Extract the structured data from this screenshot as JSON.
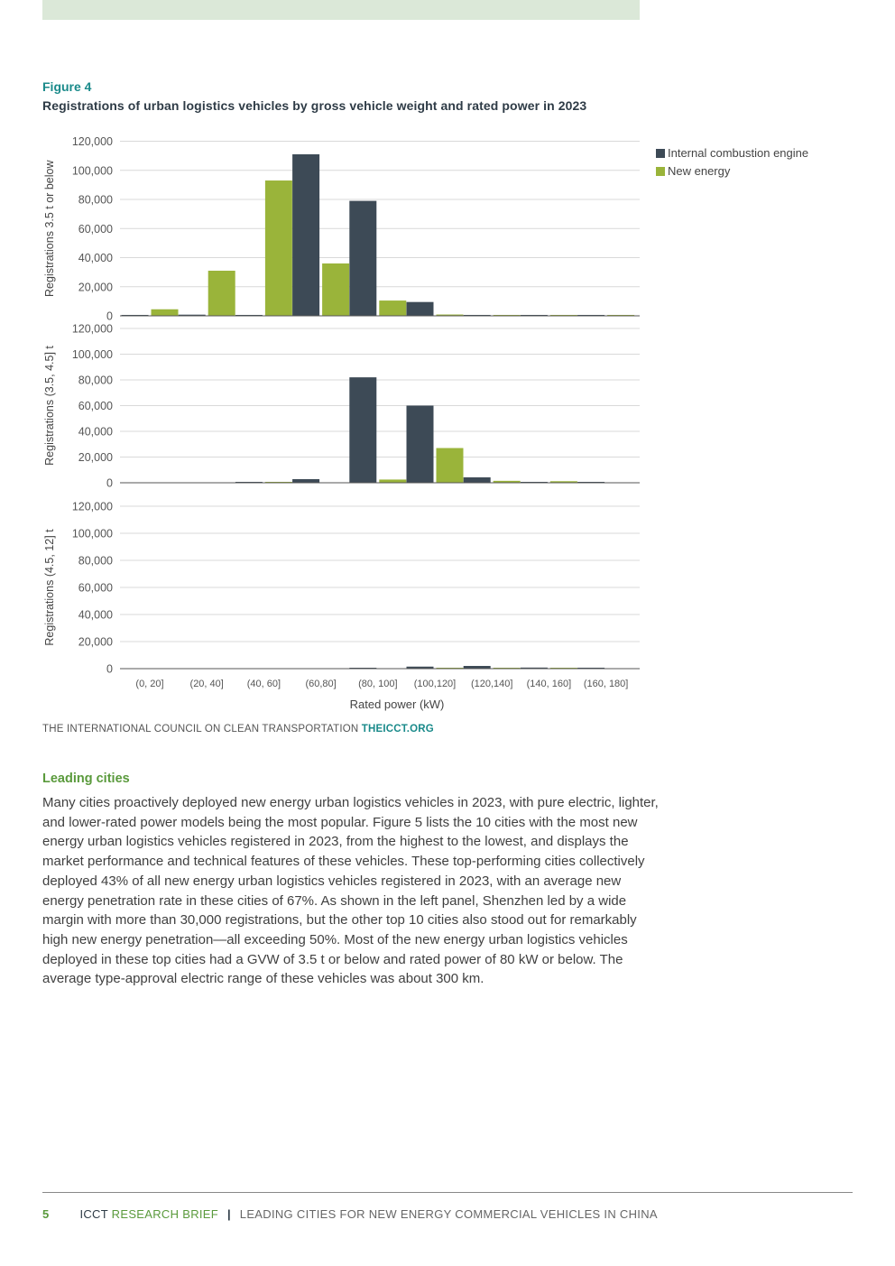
{
  "figure": {
    "label": "Figure 4",
    "title": "Registrations of urban logistics vehicles by gross vehicle weight and rated power in 2023"
  },
  "chart_data": {
    "type": "bar",
    "categories": [
      "(0, 20]",
      "(20, 40]",
      "(40, 60]",
      "(60,80]",
      "(80, 100]",
      "(100,120]",
      "(120,140]",
      "(140, 160]",
      "(160, 180]"
    ],
    "xlabel": "Rated power (kW)",
    "legend": [
      "Internal combustion engine",
      "New energy"
    ],
    "legend_position": "top-right",
    "colors": {
      "ice": "#3d4a56",
      "ne": "#9ab43a",
      "grid": "#d9d9d9",
      "axis": "#555555"
    },
    "yticks": [
      "0",
      "20,000",
      "40,000",
      "60,000",
      "80,000",
      "100,000",
      "120,000"
    ],
    "ylim": [
      0,
      120000
    ],
    "panels": [
      {
        "ylabel": "Registrations 3.5 t or below",
        "series": [
          {
            "name": "Internal combustion engine",
            "values": [
              200,
              800,
              500,
              111000,
              79000,
              9500,
              500,
              400,
              300
            ]
          },
          {
            "name": "New energy",
            "values": [
              4500,
              31000,
              93000,
              36000,
              10500,
              900,
              600,
              300,
              100
            ]
          }
        ]
      },
      {
        "ylabel": "Registrations (3.5, 4.5] t",
        "series": [
          {
            "name": "Internal combustion engine",
            "values": [
              0,
              0,
              200,
              2800,
              82000,
              60000,
              4200,
              200,
              200
            ]
          },
          {
            "name": "New energy",
            "values": [
              0,
              0,
              100,
              0,
              2500,
              27000,
              1500,
              1200,
              0
            ]
          }
        ]
      },
      {
        "ylabel": "Registrations (4.5, 12] t",
        "series": [
          {
            "name": "Internal combustion engine",
            "values": [
              0,
              0,
              0,
              0,
              500,
              1500,
              2000,
              800,
              700
            ]
          },
          {
            "name": "New energy",
            "values": [
              0,
              0,
              0,
              0,
              0,
              300,
              300,
              400,
              0
            ]
          }
        ]
      }
    ]
  },
  "source": {
    "org": "THE INTERNATIONAL COUNCIL ON CLEAN TRANSPORTATION",
    "site": "THEICCT.ORG"
  },
  "section": {
    "heading": "Leading cities",
    "body": "Many cities proactively deployed new energy urban logistics vehicles in 2023, with pure electric, lighter, and lower-rated power models being the most popular. Figure 5 lists the 10 cities with the most new energy urban logistics vehicles registered in 2023, from the highest to the lowest, and displays the market performance and technical features of these vehicles. These top-performing cities collectively deployed 43% of all new energy urban logistics vehicles registered in 2023, with an average new energy penetration rate in these cities of 67%. As shown in the left panel, Shenzhen led by a wide margin with more than 30,000 registrations, but the other top 10 cities also stood out for remarkably high new energy penetration—all exceeding 50%. Most of the new energy urban logistics vehicles deployed in these top cities had a GVW of 3.5 t or below and rated power of 80 kW or below. The average type-approval electric range of these vehicles was about 300 km."
  },
  "footer": {
    "page": "5",
    "org": "ICCT",
    "brief": "RESEARCH BRIEF",
    "separator": "|",
    "title": "LEADING CITIES FOR NEW ENERGY COMMERCIAL VEHICLES IN CHINA"
  }
}
